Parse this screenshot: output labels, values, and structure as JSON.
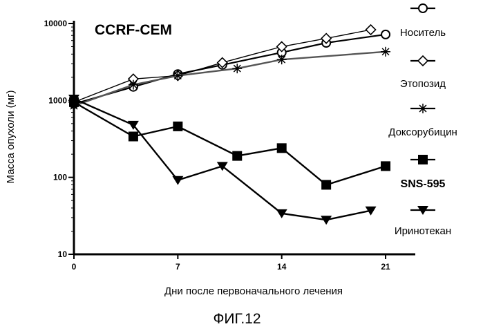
{
  "chart_data": {
    "type": "line",
    "title": "CCRF-CEM",
    "xlabel": "Дни после первоначального лечения",
    "ylabel": "Масса опухоли (мг)",
    "xlim": [
      0,
      23
    ],
    "ylim": [
      10,
      10000
    ],
    "yscale": "log",
    "xticks": [
      "0",
      "7",
      "14",
      "21"
    ],
    "yticks": [
      "10",
      "100",
      "1000",
      "10000"
    ],
    "grid": false,
    "legend_position": "right",
    "series": [
      {
        "name": "Носитель",
        "marker": "circle-open",
        "x": [
          0,
          4,
          7,
          10,
          14,
          17,
          21
        ],
        "y": [
          900,
          1500,
          2200,
          2900,
          4200,
          5600,
          7200
        ]
      },
      {
        "name": "Этопозид",
        "marker": "diamond-open",
        "x": [
          0,
          4,
          7,
          10,
          14,
          17,
          20
        ],
        "y": [
          950,
          1900,
          2100,
          3100,
          5000,
          6400,
          8300
        ]
      },
      {
        "name": "Доксорубицин",
        "marker": "asterisk",
        "x": [
          0,
          4,
          7,
          11,
          14,
          21
        ],
        "y": [
          850,
          1600,
          2100,
          2600,
          3400,
          4300
        ]
      },
      {
        "name": "SNS-595",
        "marker": "square-filled",
        "x": [
          0,
          4,
          7,
          11,
          14,
          17,
          21
        ],
        "y": [
          950,
          340,
          460,
          190,
          240,
          80,
          140
        ]
      },
      {
        "name": "Иринотекан",
        "marker": "triangle-down-filled",
        "x": [
          0,
          4,
          7,
          10,
          14,
          17,
          20
        ],
        "y": [
          1050,
          480,
          92,
          140,
          34,
          28,
          37
        ]
      }
    ]
  },
  "figure_caption": "ФИГ.12"
}
